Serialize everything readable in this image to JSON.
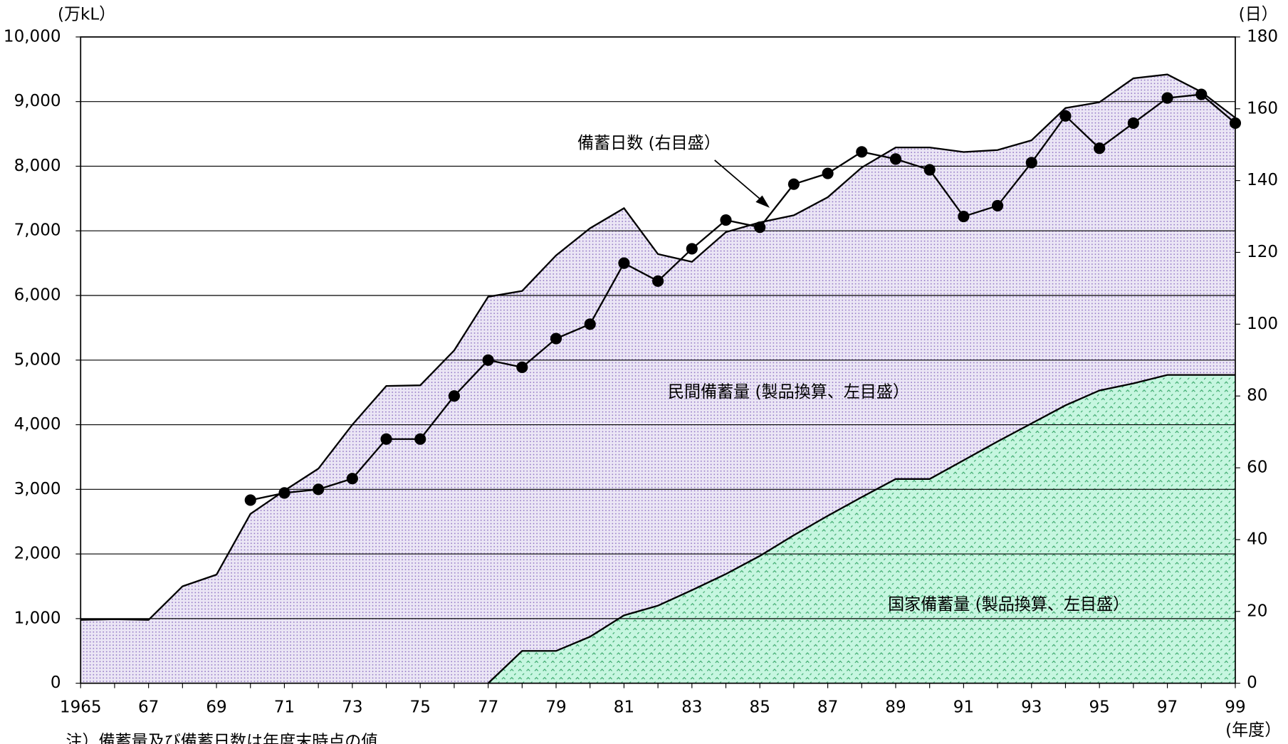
{
  "chart_data": {
    "type": "stacked-area-line",
    "y_unit_label": "(万kL）",
    "y2_unit_label": "(日）",
    "x_unit_label": "(年度）",
    "note": "注）備蓄量及び備蓄日数は年度末時点の値",
    "categories": [
      "1965",
      null,
      "67",
      null,
      "69",
      null,
      "71",
      null,
      "73",
      null,
      "75",
      null,
      "77",
      null,
      "79",
      null,
      "81",
      null,
      "83",
      null,
      "85",
      null,
      "87",
      null,
      "89",
      null,
      "91",
      null,
      "93",
      null,
      "95",
      null,
      "97",
      null,
      "99"
    ],
    "series": [
      {
        "name": "国家備蓄量 (製品換算、左目盛）",
        "color": "#c6f6e0",
        "dot_color": "#3aa86a",
        "values": [
          null,
          null,
          null,
          null,
          null,
          null,
          null,
          null,
          null,
          null,
          null,
          null,
          0,
          500,
          500,
          720,
          1050,
          1200,
          1440,
          1690,
          1970,
          2290,
          2590,
          2880,
          3160,
          3160,
          3450,
          3740,
          4020,
          4300,
          4530,
          4640,
          4770,
          4770,
          4770
        ]
      },
      {
        "name": "民間備蓄量 (製品換算、左目盛）",
        "color": "#ebe6f5",
        "dot_color": "#8a6cc0",
        "values": [
          980,
          990,
          980,
          1500,
          1680,
          2620,
          2980,
          3320,
          4000,
          4600,
          4610,
          5150,
          5980,
          5570,
          6120,
          6320,
          6300,
          5440,
          5080,
          5290,
          5160,
          4950,
          4930,
          5100,
          5130,
          5130,
          4770,
          4510,
          4380,
          4600,
          4460,
          4720,
          4650,
          4380,
          3980
        ]
      },
      {
        "name": "備蓄日数 (右目盛）",
        "color": "#000000",
        "axis": "y2",
        "values": [
          null,
          null,
          null,
          null,
          null,
          51,
          53,
          54,
          57,
          68,
          68,
          80,
          90,
          88,
          96,
          100,
          117,
          112,
          121,
          129,
          127,
          139,
          142,
          148,
          146,
          143,
          130,
          133,
          145,
          158,
          149,
          156,
          163,
          164,
          156
        ]
      }
    ],
    "ylim": [
      0,
      10000
    ],
    "yticks": [
      0,
      {
        "value": 1000,
        "label": "1,000"
      },
      {
        "value": 2000,
        "label": "2,000"
      },
      {
        "value": 3000,
        "label": "3,000"
      },
      {
        "value": 4000,
        "label": "4,000"
      },
      {
        "value": 5000,
        "label": "5,000"
      },
      {
        "value": 6000,
        "label": "6,000"
      },
      {
        "value": 7000,
        "label": "7,000"
      },
      {
        "value": 8000,
        "label": "8,000"
      },
      {
        "value": 9000,
        "label": "9,000"
      },
      {
        "value": 10000,
        "label": "10,000"
      }
    ],
    "y2lim": [
      0,
      180
    ],
    "y2ticks": [
      0,
      20,
      40,
      60,
      80,
      100,
      120,
      140,
      160,
      180
    ],
    "grid": true
  }
}
